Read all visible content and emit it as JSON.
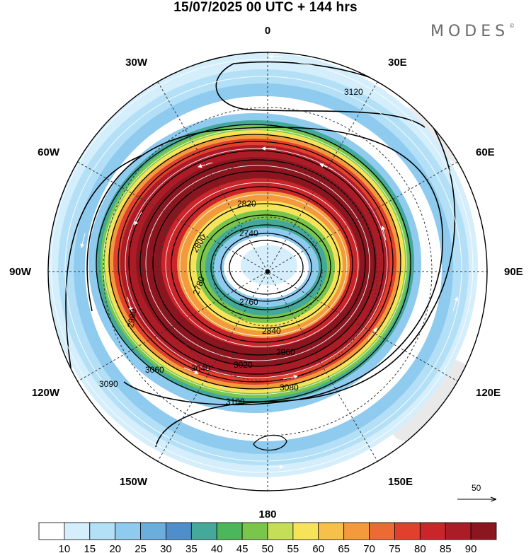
{
  "title": "15/07/2025  00 UTC  + 144 hrs",
  "brand": "MODES",
  "brand_mark": "©",
  "longitude_labels": [
    "0",
    "30E",
    "60E",
    "90E",
    "120E",
    "150E",
    "180",
    "150W",
    "120W",
    "90W",
    "60W",
    "30W"
  ],
  "contour_labels": [
    "2740",
    "2760",
    "2780",
    "2800",
    "2820",
    "2840",
    "2960",
    "2980",
    "3020",
    "3040",
    "3060",
    "3080",
    "3090",
    "3100",
    "3120"
  ],
  "wind_reference": "50",
  "colorbar": {
    "ticks": [
      "10",
      "15",
      "20",
      "25",
      "30",
      "35",
      "40",
      "45",
      "50",
      "55",
      "60",
      "65",
      "70",
      "75",
      "80",
      "85",
      "90"
    ],
    "colors": [
      "#ffffff",
      "#d4eefb",
      "#b4e0f7",
      "#8fcbef",
      "#6aaede",
      "#4e8fcb",
      "#44a89a",
      "#4bb75a",
      "#79c64a",
      "#c6de57",
      "#f7e359",
      "#f6c04b",
      "#f39a3d",
      "#ec6b34",
      "#e1402d",
      "#c9252a",
      "#ac1c27",
      "#8b1620"
    ]
  }
}
